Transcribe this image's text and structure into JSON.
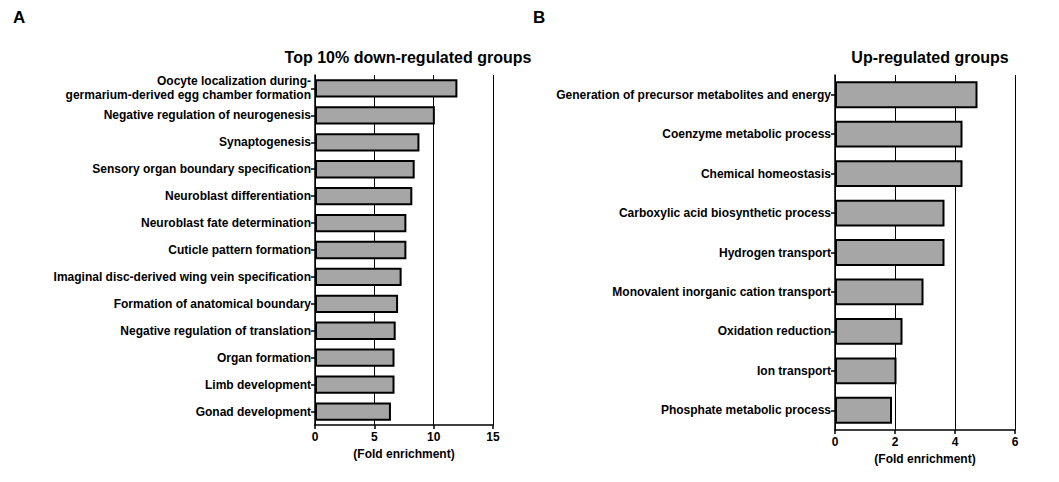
{
  "chart_data": [
    {
      "type": "bar",
      "orientation": "horizontal",
      "annotations": [
        "A"
      ],
      "title": "Top 10% down-regulated groups",
      "x_label": "(Fold enrichment)",
      "categories": [
        "Oocyte localization during-\ngermarium-derived egg chamber formation",
        "Negative regulation of neurogenesis",
        "Synaptogenesis",
        "Sensory organ boundary specification",
        "Neuroblast differentiation",
        "Neuroblast fate determination",
        "Cuticle pattern formation",
        "Imaginal disc-derived wing vein specification",
        "Formation of anatomical boundary",
        "Negative regulation of translation",
        "Organ formation",
        "Limb development",
        "Gonad development"
      ],
      "values": [
        12.0,
        10.1,
        8.8,
        8.4,
        8.2,
        7.7,
        7.7,
        7.3,
        7.0,
        6.8,
        6.7,
        6.7,
        6.4
      ],
      "color": "#a6a6a6",
      "xlim": [
        0,
        15
      ],
      "xticks": [
        0,
        5,
        10,
        15
      ],
      "grid": true
    },
    {
      "type": "bar",
      "orientation": "horizontal",
      "annotations": [
        "B"
      ],
      "title": "Up-regulated groups",
      "x_label": "(Fold enrichment)",
      "categories": [
        "Generation of precursor metabolites and energy",
        "Coenzyme metabolic process",
        "Chemical homeostasis",
        "Carboxylic acid biosynthetic process",
        "Hydrogen transport",
        "Monovalent inorganic cation transport",
        "Oxidation reduction",
        "Ion transport",
        "Phosphate metabolic process"
      ],
      "values": [
        4.75,
        4.25,
        4.25,
        3.65,
        3.65,
        2.95,
        2.25,
        2.05,
        1.9
      ],
      "color": "#a6a6a6",
      "xlim": [
        0,
        6
      ],
      "xticks": [
        0,
        2,
        4,
        6
      ],
      "grid": true
    }
  ]
}
